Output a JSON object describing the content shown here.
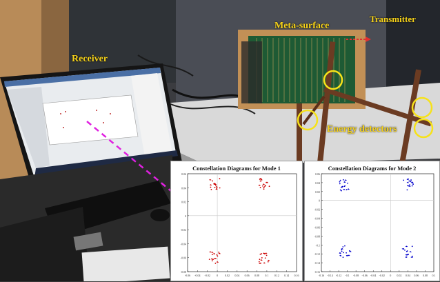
{
  "labels": {
    "receiver": "Receiver",
    "meta_surface": "Meta-surface",
    "transmitter": "Transmitter",
    "energy_detectors": "Energy detectors"
  },
  "colors": {
    "label": "#f6d21a",
    "arrow": "#e020e0",
    "mode1": "#cc0000",
    "mode2": "#0000cc",
    "circle": "#f6e21a"
  },
  "chart_data": [
    {
      "type": "scatter",
      "title": "Constellation Diagrams for Mode 1",
      "color": "#cc0000",
      "grid": true,
      "xlim": [
        -0.06,
        0.16
      ],
      "ylim": [
        -0.08,
        0.06
      ],
      "yticks": [
        "0.06",
        "0.04",
        "0.02",
        "0",
        "-0.02",
        "-0.04",
        "-0.06",
        "-0.08"
      ],
      "xticks": [
        "-0.06",
        "-0.04",
        "-0.02",
        "0",
        "0.02",
        "0.04",
        "0.06",
        "0.08",
        "0.1",
        "0.12",
        "0.14",
        "0.16"
      ],
      "clusters": [
        {
          "x": -0.005,
          "y": 0.045
        },
        {
          "x": 0.095,
          "y": 0.045
        },
        {
          "x": -0.005,
          "y": -0.06
        },
        {
          "x": 0.095,
          "y": -0.06
        }
      ]
    },
    {
      "type": "scatter",
      "title": "Constellation Diagrams for Mode 2",
      "color": "#0000cc",
      "grid": true,
      "xlim": [
        -0.16,
        0.1
      ],
      "ylim": [
        -0.16,
        0.06
      ],
      "yticks": [
        "0.06",
        "0.04",
        "0.02",
        "0",
        "-0.02",
        "-0.04",
        "-0.06",
        "-0.08",
        "-0.1",
        "-0.12",
        "-0.14",
        "-0.16"
      ],
      "xticks": [
        "-0.16",
        "-0.14",
        "-0.12",
        "-0.1",
        "-0.08",
        "-0.06",
        "-0.04",
        "-0.02",
        "0",
        "0.02",
        "0.04",
        "0.06",
        "0.08",
        "0.1"
      ],
      "clusters": [
        {
          "x": -0.105,
          "y": 0.035
        },
        {
          "x": 0.04,
          "y": 0.035
        },
        {
          "x": -0.105,
          "y": -0.115
        },
        {
          "x": 0.04,
          "y": -0.115
        }
      ]
    }
  ]
}
